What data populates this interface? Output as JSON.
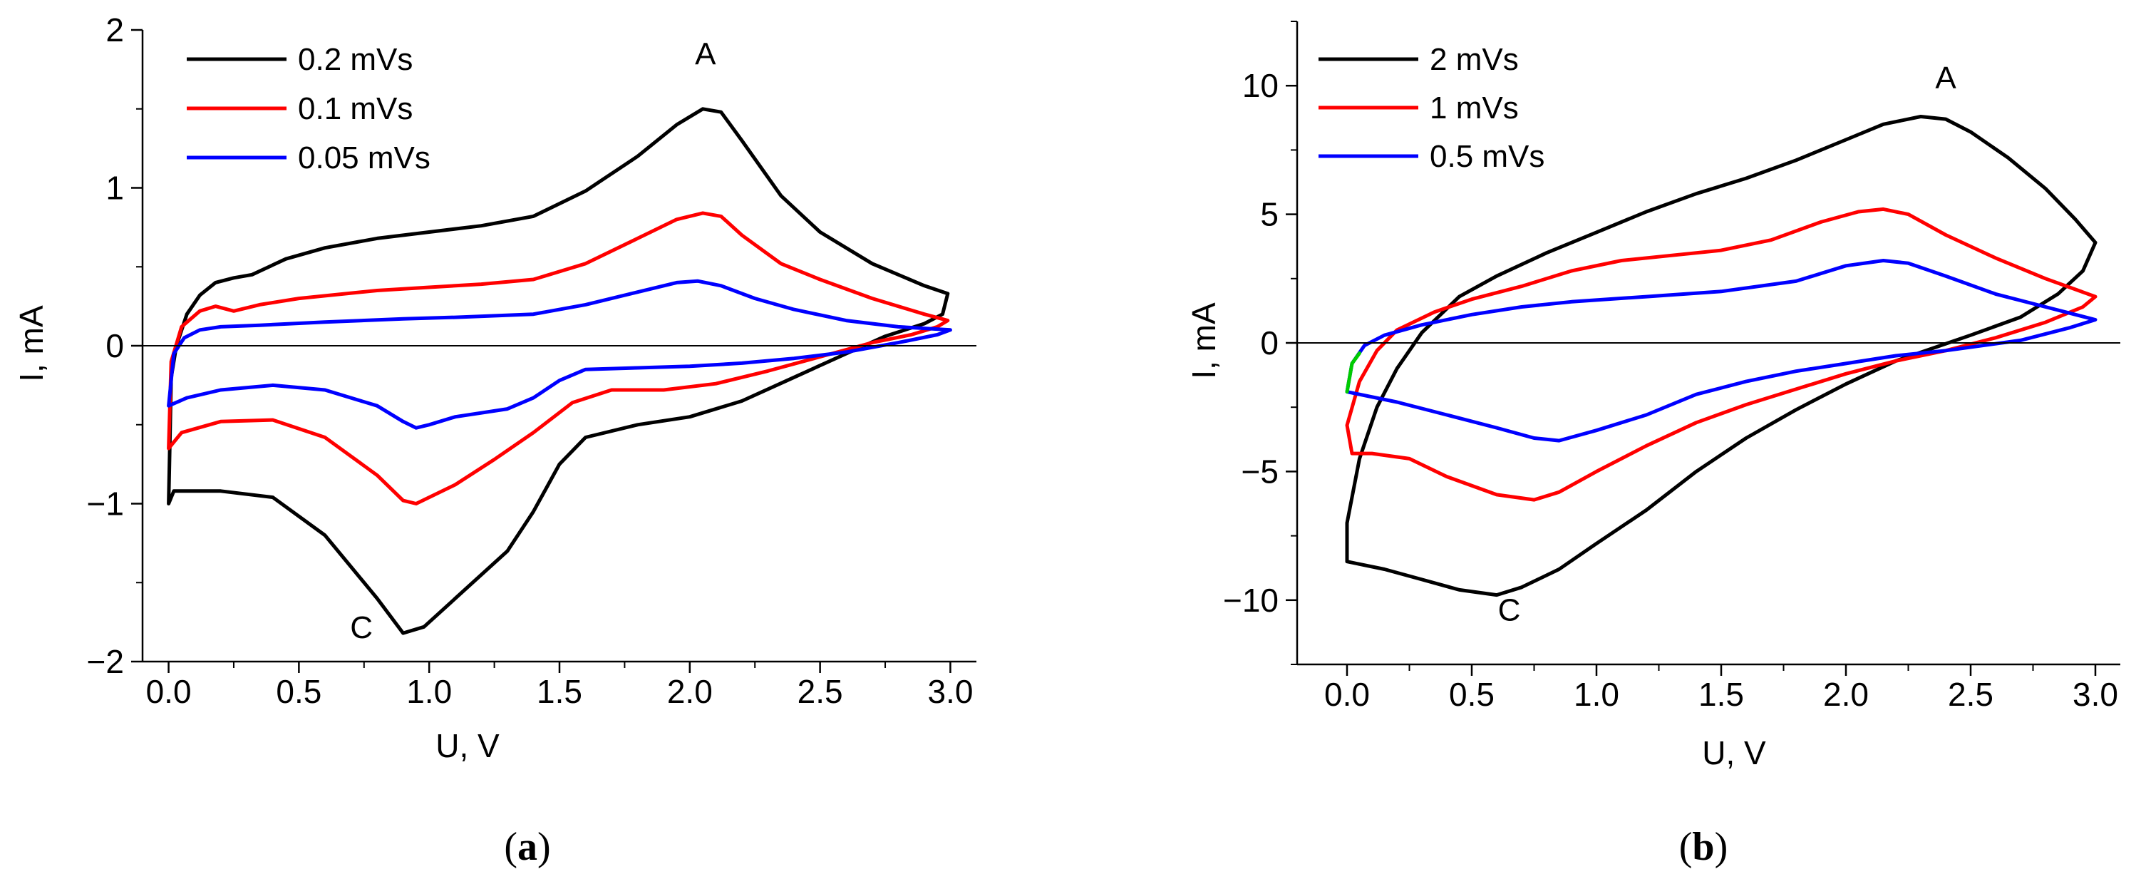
{
  "chart_data": [
    {
      "type": "line",
      "panel": "(a)",
      "panel_letter": "a",
      "title": "",
      "xlabel": "U, V",
      "ylabel": "I, mA",
      "xlim": [
        -0.1,
        3.1
      ],
      "ylim": [
        -2,
        2
      ],
      "xticks": [
        0.0,
        0.5,
        1.0,
        1.5,
        2.0,
        2.5,
        3.0
      ],
      "xtick_labels": [
        "0.0",
        "0.5",
        "1.0",
        "1.5",
        "2.0",
        "2.5",
        "3.0"
      ],
      "yticks": [
        -2,
        -1,
        0,
        1,
        2
      ],
      "ytick_labels": [
        "−2",
        "−1",
        "0",
        "1",
        "2"
      ],
      "zero_line": true,
      "grid": false,
      "legend_position": "top-left",
      "annotations": [
        {
          "text": "A",
          "x": 2.06,
          "y": 1.78
        },
        {
          "text": "C",
          "x": 0.74,
          "y": -1.85
        }
      ],
      "series": [
        {
          "name": "0.2 mVs",
          "color": "#000000",
          "points": [
            [
              0.0,
              -1.0
            ],
            [
              0.01,
              -0.2
            ],
            [
              0.03,
              0.0
            ],
            [
              0.07,
              0.2
            ],
            [
              0.12,
              0.32
            ],
            [
              0.18,
              0.4
            ],
            [
              0.25,
              0.43
            ],
            [
              0.32,
              0.45
            ],
            [
              0.45,
              0.55
            ],
            [
              0.6,
              0.62
            ],
            [
              0.8,
              0.68
            ],
            [
              1.0,
              0.72
            ],
            [
              1.2,
              0.76
            ],
            [
              1.4,
              0.82
            ],
            [
              1.6,
              0.98
            ],
            [
              1.8,
              1.2
            ],
            [
              1.95,
              1.4
            ],
            [
              2.05,
              1.5
            ],
            [
              2.12,
              1.48
            ],
            [
              2.2,
              1.3
            ],
            [
              2.35,
              0.95
            ],
            [
              2.5,
              0.72
            ],
            [
              2.7,
              0.52
            ],
            [
              2.9,
              0.38
            ],
            [
              2.99,
              0.33
            ],
            [
              2.97,
              0.2
            ],
            [
              2.9,
              0.14
            ],
            [
              2.75,
              0.06
            ],
            [
              2.6,
              -0.05
            ],
            [
              2.4,
              -0.2
            ],
            [
              2.2,
              -0.35
            ],
            [
              2.0,
              -0.45
            ],
            [
              1.8,
              -0.5
            ],
            [
              1.6,
              -0.58
            ],
            [
              1.5,
              -0.75
            ],
            [
              1.4,
              -1.05
            ],
            [
              1.3,
              -1.3
            ],
            [
              1.1,
              -1.6
            ],
            [
              0.98,
              -1.78
            ],
            [
              0.9,
              -1.82
            ],
            [
              0.8,
              -1.6
            ],
            [
              0.6,
              -1.2
            ],
            [
              0.4,
              -0.96
            ],
            [
              0.2,
              -0.92
            ],
            [
              0.05,
              -0.92
            ],
            [
              0.02,
              -0.92
            ],
            [
              0.0,
              -1.0
            ]
          ]
        },
        {
          "name": "0.1 mVs",
          "color": "#ff0000",
          "points": [
            [
              0.0,
              -0.65
            ],
            [
              0.01,
              -0.1
            ],
            [
              0.05,
              0.12
            ],
            [
              0.12,
              0.22
            ],
            [
              0.18,
              0.25
            ],
            [
              0.25,
              0.22
            ],
            [
              0.35,
              0.26
            ],
            [
              0.5,
              0.3
            ],
            [
              0.8,
              0.35
            ],
            [
              1.0,
              0.37
            ],
            [
              1.2,
              0.39
            ],
            [
              1.4,
              0.42
            ],
            [
              1.6,
              0.52
            ],
            [
              1.8,
              0.68
            ],
            [
              1.95,
              0.8
            ],
            [
              2.05,
              0.84
            ],
            [
              2.12,
              0.82
            ],
            [
              2.2,
              0.7
            ],
            [
              2.35,
              0.52
            ],
            [
              2.5,
              0.42
            ],
            [
              2.7,
              0.3
            ],
            [
              2.9,
              0.2
            ],
            [
              2.99,
              0.16
            ],
            [
              2.95,
              0.12
            ],
            [
              2.85,
              0.07
            ],
            [
              2.7,
              0.02
            ],
            [
              2.5,
              -0.07
            ],
            [
              2.3,
              -0.16
            ],
            [
              2.1,
              -0.24
            ],
            [
              1.9,
              -0.28
            ],
            [
              1.7,
              -0.28
            ],
            [
              1.55,
              -0.36
            ],
            [
              1.4,
              -0.55
            ],
            [
              1.25,
              -0.72
            ],
            [
              1.1,
              -0.88
            ],
            [
              0.95,
              -1.0
            ],
            [
              0.9,
              -0.98
            ],
            [
              0.8,
              -0.82
            ],
            [
              0.6,
              -0.58
            ],
            [
              0.4,
              -0.47
            ],
            [
              0.2,
              -0.48
            ],
            [
              0.05,
              -0.55
            ],
            [
              0.0,
              -0.65
            ]
          ]
        },
        {
          "name": "0.05 mVs",
          "color": "#0000ff",
          "points": [
            [
              0.0,
              -0.38
            ],
            [
              0.02,
              -0.05
            ],
            [
              0.06,
              0.05
            ],
            [
              0.12,
              0.1
            ],
            [
              0.2,
              0.12
            ],
            [
              0.35,
              0.13
            ],
            [
              0.6,
              0.15
            ],
            [
              0.9,
              0.17
            ],
            [
              1.1,
              0.18
            ],
            [
              1.4,
              0.2
            ],
            [
              1.6,
              0.26
            ],
            [
              1.8,
              0.34
            ],
            [
              1.95,
              0.4
            ],
            [
              2.03,
              0.41
            ],
            [
              2.12,
              0.38
            ],
            [
              2.25,
              0.3
            ],
            [
              2.4,
              0.23
            ],
            [
              2.6,
              0.16
            ],
            [
              2.8,
              0.12
            ],
            [
              3.0,
              0.1
            ],
            [
              2.95,
              0.07
            ],
            [
              2.8,
              0.02
            ],
            [
              2.6,
              -0.04
            ],
            [
              2.4,
              -0.08
            ],
            [
              2.2,
              -0.11
            ],
            [
              2.0,
              -0.13
            ],
            [
              1.8,
              -0.14
            ],
            [
              1.6,
              -0.15
            ],
            [
              1.5,
              -0.22
            ],
            [
              1.4,
              -0.33
            ],
            [
              1.3,
              -0.4
            ],
            [
              1.1,
              -0.45
            ],
            [
              1.0,
              -0.5
            ],
            [
              0.95,
              -0.52
            ],
            [
              0.9,
              -0.48
            ],
            [
              0.8,
              -0.38
            ],
            [
              0.6,
              -0.28
            ],
            [
              0.4,
              -0.25
            ],
            [
              0.2,
              -0.28
            ],
            [
              0.07,
              -0.33
            ],
            [
              0.0,
              -0.38
            ]
          ]
        }
      ]
    },
    {
      "type": "line",
      "panel": "(b)",
      "panel_letter": "b",
      "title": "",
      "xlabel": "U, V",
      "ylabel": "I, mA",
      "xlim": [
        -0.2,
        3.1
      ],
      "ylim": [
        -12.5,
        12.5
      ],
      "xticks": [
        0.0,
        0.5,
        1.0,
        1.5,
        2.0,
        2.5,
        3.0
      ],
      "xtick_labels": [
        "0.0",
        "0.5",
        "1.0",
        "1.5",
        "2.0",
        "2.5",
        "3.0"
      ],
      "yticks": [
        -10,
        -5,
        0,
        5,
        10
      ],
      "ytick_labels": [
        "−10",
        "−5",
        "0",
        "5",
        "10"
      ],
      "zero_line": true,
      "grid": false,
      "legend_position": "top-left",
      "annotations": [
        {
          "text": "A",
          "x": 2.4,
          "y": 9.9
        },
        {
          "text": "C",
          "x": 0.65,
          "y": -10.8
        }
      ],
      "series": [
        {
          "name": "2 mVs",
          "color": "#000000",
          "points": [
            [
              0.0,
              -8.5
            ],
            [
              0.0,
              -7.0
            ],
            [
              0.05,
              -4.5
            ],
            [
              0.12,
              -2.5
            ],
            [
              0.2,
              -1.0
            ],
            [
              0.3,
              0.4
            ],
            [
              0.45,
              1.8
            ],
            [
              0.6,
              2.6
            ],
            [
              0.8,
              3.5
            ],
            [
              1.0,
              4.3
            ],
            [
              1.2,
              5.1
            ],
            [
              1.4,
              5.8
            ],
            [
              1.6,
              6.4
            ],
            [
              1.8,
              7.1
            ],
            [
              2.0,
              7.9
            ],
            [
              2.15,
              8.5
            ],
            [
              2.3,
              8.8
            ],
            [
              2.4,
              8.7
            ],
            [
              2.5,
              8.2
            ],
            [
              2.65,
              7.2
            ],
            [
              2.8,
              6.0
            ],
            [
              2.92,
              4.8
            ],
            [
              3.0,
              3.9
            ],
            [
              2.95,
              2.8
            ],
            [
              2.85,
              1.9
            ],
            [
              2.7,
              1.0
            ],
            [
              2.5,
              0.3
            ],
            [
              2.35,
              -0.2
            ],
            [
              2.2,
              -0.7
            ],
            [
              2.0,
              -1.6
            ],
            [
              1.8,
              -2.6
            ],
            [
              1.6,
              -3.7
            ],
            [
              1.4,
              -5.0
            ],
            [
              1.2,
              -6.5
            ],
            [
              1.0,
              -7.8
            ],
            [
              0.85,
              -8.8
            ],
            [
              0.7,
              -9.5
            ],
            [
              0.6,
              -9.8
            ],
            [
              0.45,
              -9.6
            ],
            [
              0.3,
              -9.2
            ],
            [
              0.15,
              -8.8
            ],
            [
              0.05,
              -8.6
            ],
            [
              0.0,
              -8.5
            ]
          ]
        },
        {
          "name": "1 mVs",
          "color": "#ff0000",
          "points": [
            [
              0.02,
              -4.3
            ],
            [
              0.0,
              -3.2
            ],
            [
              0.05,
              -1.5
            ],
            [
              0.12,
              -0.3
            ],
            [
              0.2,
              0.5
            ],
            [
              0.35,
              1.2
            ],
            [
              0.5,
              1.7
            ],
            [
              0.7,
              2.2
            ],
            [
              0.9,
              2.8
            ],
            [
              1.1,
              3.2
            ],
            [
              1.3,
              3.4
            ],
            [
              1.5,
              3.6
            ],
            [
              1.7,
              4.0
            ],
            [
              1.9,
              4.7
            ],
            [
              2.05,
              5.1
            ],
            [
              2.15,
              5.2
            ],
            [
              2.25,
              5.0
            ],
            [
              2.4,
              4.2
            ],
            [
              2.6,
              3.3
            ],
            [
              2.8,
              2.5
            ],
            [
              3.0,
              1.8
            ],
            [
              2.95,
              1.4
            ],
            [
              2.8,
              0.8
            ],
            [
              2.6,
              0.2
            ],
            [
              2.4,
              -0.3
            ],
            [
              2.2,
              -0.7
            ],
            [
              2.0,
              -1.2
            ],
            [
              1.8,
              -1.8
            ],
            [
              1.6,
              -2.4
            ],
            [
              1.4,
              -3.1
            ],
            [
              1.2,
              -4.0
            ],
            [
              1.0,
              -5.0
            ],
            [
              0.85,
              -5.8
            ],
            [
              0.75,
              -6.1
            ],
            [
              0.6,
              -5.9
            ],
            [
              0.4,
              -5.2
            ],
            [
              0.25,
              -4.5
            ],
            [
              0.1,
              -4.3
            ],
            [
              0.02,
              -4.3
            ]
          ]
        },
        {
          "name": "0.5 mVs",
          "color": "#0000ff",
          "points": [
            [
              0.0,
              -1.9
            ],
            [
              0.02,
              -0.8
            ],
            [
              0.07,
              -0.1
            ],
            [
              0.15,
              0.3
            ],
            [
              0.3,
              0.7
            ],
            [
              0.5,
              1.1
            ],
            [
              0.7,
              1.4
            ],
            [
              0.9,
              1.6
            ],
            [
              1.2,
              1.8
            ],
            [
              1.5,
              2.0
            ],
            [
              1.8,
              2.4
            ],
            [
              2.0,
              3.0
            ],
            [
              2.15,
              3.2
            ],
            [
              2.25,
              3.1
            ],
            [
              2.4,
              2.6
            ],
            [
              2.6,
              1.9
            ],
            [
              2.8,
              1.4
            ],
            [
              3.0,
              0.9
            ],
            [
              2.9,
              0.6
            ],
            [
              2.7,
              0.1
            ],
            [
              2.4,
              -0.3
            ],
            [
              2.2,
              -0.5
            ],
            [
              2.0,
              -0.8
            ],
            [
              1.8,
              -1.1
            ],
            [
              1.6,
              -1.5
            ],
            [
              1.4,
              -2.0
            ],
            [
              1.2,
              -2.8
            ],
            [
              1.0,
              -3.4
            ],
            [
              0.85,
              -3.8
            ],
            [
              0.75,
              -3.7
            ],
            [
              0.6,
              -3.3
            ],
            [
              0.4,
              -2.8
            ],
            [
              0.2,
              -2.3
            ],
            [
              0.0,
              -1.9
            ]
          ]
        },
        {
          "name": "",
          "color": "#00cc00",
          "legend": false,
          "points": [
            [
              0.0,
              -1.9
            ],
            [
              0.02,
              -0.8
            ],
            [
              0.05,
              -0.4
            ]
          ]
        }
      ]
    }
  ]
}
